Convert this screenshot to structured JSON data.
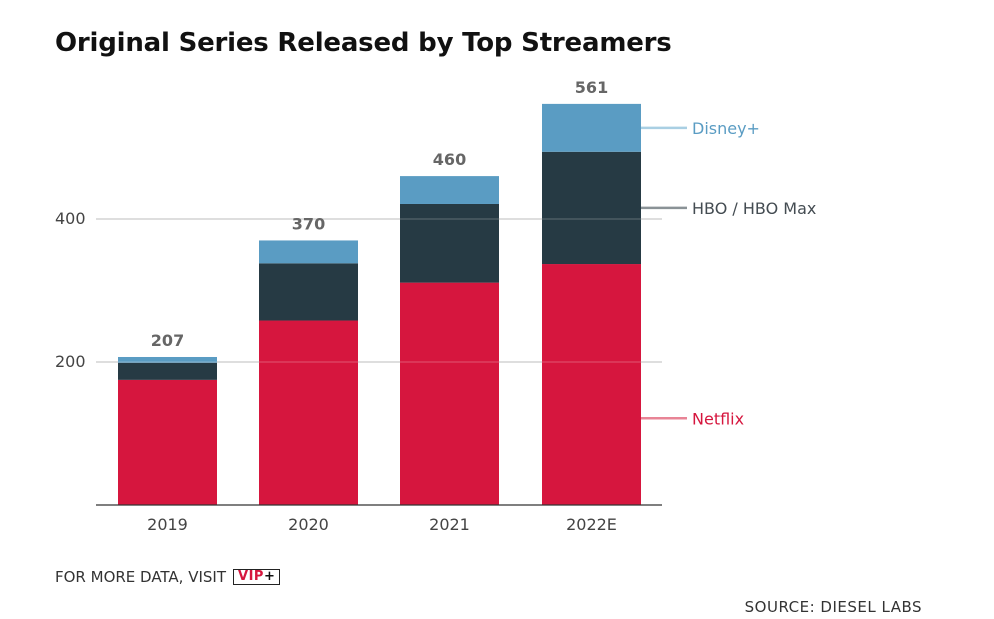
{
  "title": "Original Series Released by Top Streamers",
  "footer": {
    "more_data_text": "FOR MORE DATA, VISIT",
    "logo_text": "VIP+",
    "source_text": "SOURCE: DIESEL LABS"
  },
  "colors": {
    "netflix": "#d6163e",
    "hbo": "#263a44",
    "disney": "#5a9cc3",
    "netflix_leader": "#e88496",
    "hbo_leader": "#8a9296",
    "disney_leader": "#a9cfe3",
    "gridline": "#cccccc",
    "axis": "#333333"
  },
  "chart_data": {
    "type": "bar",
    "stacked": true,
    "title": "Original Series Released by Top Streamers",
    "categories": [
      "2019",
      "2020",
      "2021",
      "2022E"
    ],
    "series": [
      {
        "name": "Netflix",
        "values": [
          175,
          258,
          311,
          337
        ]
      },
      {
        "name": "HBO / HBO Max",
        "values": [
          24,
          80,
          110,
          157
        ]
      },
      {
        "name": "Disney+",
        "values": [
          8,
          32,
          39,
          67
        ]
      }
    ],
    "totals": [
      207,
      370,
      460,
      561
    ],
    "yticks": [
      200,
      400
    ],
    "ylim": [
      0,
      600
    ],
    "grid": true,
    "legend_placement": "right, inline with final bar"
  }
}
